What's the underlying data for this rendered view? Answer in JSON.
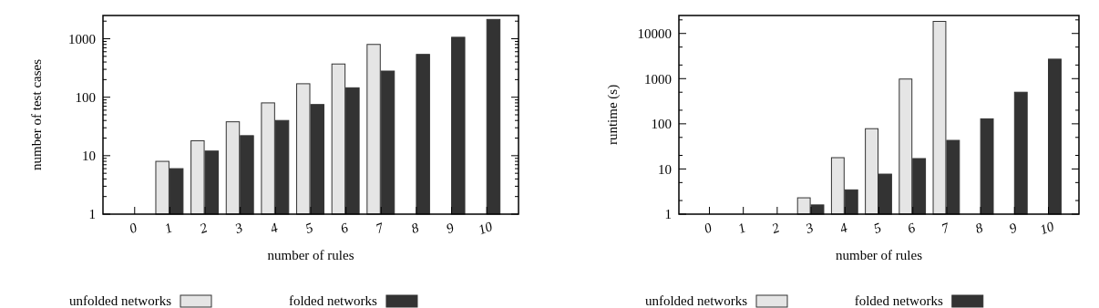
{
  "chart_data": [
    {
      "type": "bar",
      "xlabel": "number of rules",
      "ylabel": "number of test cases",
      "categories": [
        "0",
        "1",
        "2",
        "3",
        "4",
        "5",
        "6",
        "7",
        "8",
        "9",
        "10"
      ],
      "log": true,
      "ylim": [
        1,
        2500
      ],
      "yticks": [
        1,
        {
          "value": 2,
          "label": null
        },
        {
          "value": 3,
          "label": null
        },
        {
          "value": 4,
          "label": null
        },
        {
          "value": 5,
          "label": null
        },
        {
          "value": 6,
          "label": null
        },
        {
          "value": 7,
          "label": null
        },
        {
          "value": 8,
          "label": null
        },
        {
          "value": 9,
          "label": null
        },
        10,
        {
          "value": 20,
          "label": null
        },
        {
          "value": 30,
          "label": null
        },
        {
          "value": 40,
          "label": null
        },
        {
          "value": 50,
          "label": null
        },
        {
          "value": 60,
          "label": null
        },
        {
          "value": 70,
          "label": null
        },
        {
          "value": 80,
          "label": null
        },
        {
          "value": 90,
          "label": null
        },
        100,
        {
          "value": 200,
          "label": null
        },
        {
          "value": 300,
          "label": null
        },
        {
          "value": 400,
          "label": null
        },
        {
          "value": 500,
          "label": null
        },
        {
          "value": 600,
          "label": null
        },
        {
          "value": 700,
          "label": null
        },
        {
          "value": 800,
          "label": null
        },
        {
          "value": 900,
          "label": null
        },
        1000,
        {
          "value": 2000,
          "label": null
        }
      ],
      "legend": "bottom",
      "grid": false,
      "series": [
        {
          "name": "unfolded networks",
          "color": "#e5e5e5",
          "values": [
            null,
            8,
            18,
            38,
            80,
            170,
            370,
            800,
            null,
            null,
            null
          ]
        },
        {
          "name": "folded networks",
          "color": "#333333",
          "values": [
            null,
            6,
            12,
            22,
            40,
            75,
            145,
            280,
            540,
            1060,
            2140
          ]
        }
      ]
    },
    {
      "type": "bar",
      "xlabel": "number of rules",
      "ylabel": "runtime (s)",
      "categories": [
        "0",
        "1",
        "2",
        "3",
        "4",
        "5",
        "6",
        "7",
        "8",
        "9",
        "10"
      ],
      "log": true,
      "ylim": [
        1,
        25000
      ],
      "yticks": [
        1,
        {
          "value": 2,
          "label": null
        },
        {
          "value": 5,
          "label": null
        },
        10,
        {
          "value": 20,
          "label": null
        },
        {
          "value": 50,
          "label": null
        },
        100,
        {
          "value": 200,
          "label": null
        },
        {
          "value": 500,
          "label": null
        },
        1000,
        {
          "value": 2000,
          "label": null
        },
        {
          "value": 5000,
          "label": null
        },
        10000,
        {
          "value": 20000,
          "label": null
        }
      ],
      "legend": "bottom",
      "grid": false,
      "series": [
        {
          "name": "unfolded networks",
          "color": "#e5e5e5",
          "values": [
            null,
            null,
            null,
            2.3,
            17.8,
            78,
            980,
            18500,
            null,
            null,
            null
          ]
        },
        {
          "name": "folded networks",
          "color": "#333333",
          "values": [
            null,
            null,
            null,
            1.6,
            3.45,
            7.7,
            17,
            43,
            129,
            500,
            2700
          ]
        }
      ]
    }
  ]
}
